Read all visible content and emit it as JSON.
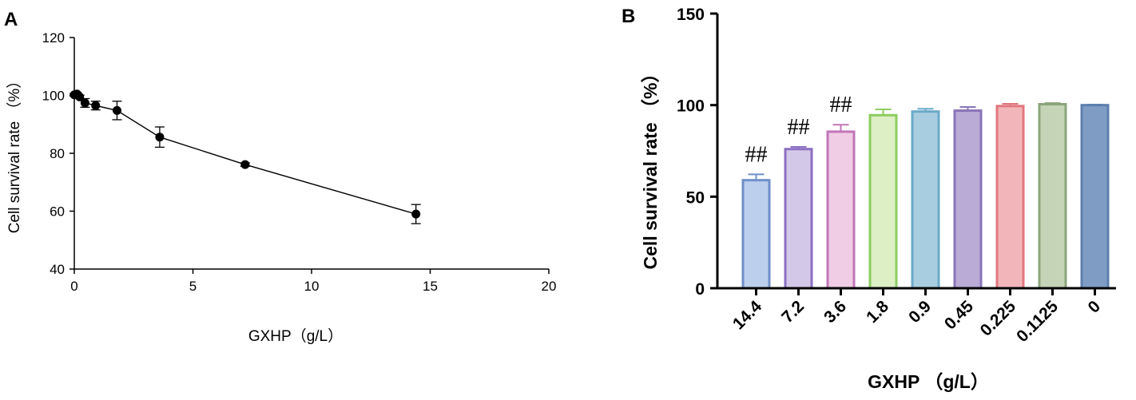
{
  "chart_data": [
    {
      "panel": "A",
      "type": "line",
      "xlabel": "GXHP（g/L）",
      "ylabel": "Cell survival rate （%）",
      "xlim": [
        0,
        20
      ],
      "ylim": [
        40,
        120
      ],
      "xticks": [
        0,
        5,
        10,
        15,
        20
      ],
      "yticks": [
        40,
        60,
        80,
        100,
        120
      ],
      "series": [
        {
          "points": [
            {
              "x": 0,
              "y": 100.2,
              "err": 0.4
            },
            {
              "x": 0.1125,
              "y": 100.5,
              "err": 0.5
            },
            {
              "x": 0.225,
              "y": 99.5,
              "err": 0.6
            },
            {
              "x": 0.45,
              "y": 97.4,
              "err": 1.5
            },
            {
              "x": 0.9,
              "y": 96.5,
              "err": 1.5
            },
            {
              "x": 1.8,
              "y": 94.8,
              "err": 3.2
            },
            {
              "x": 3.6,
              "y": 85.6,
              "err": 3.5
            },
            {
              "x": 7.2,
              "y": 76.1,
              "err": 0.6
            },
            {
              "x": 14.4,
              "y": 59.0,
              "err": 3.3
            }
          ]
        }
      ]
    },
    {
      "panel": "B",
      "type": "bar",
      "xlabel": "GXHP （g/L）",
      "ylabel": "Cell survival rate （%）",
      "ylim": [
        0,
        150
      ],
      "yticks": [
        0,
        50,
        100,
        150
      ],
      "categories": [
        "14.4",
        "7.2",
        "3.6",
        "1.8",
        "0.9",
        "0.45",
        "0.225",
        "0.1125",
        "0"
      ],
      "values": [
        59,
        76,
        85.5,
        94.5,
        96.5,
        97,
        99.5,
        100.5,
        100
      ],
      "errors": [
        3.2,
        1.2,
        3.8,
        3.2,
        1.5,
        2.0,
        1.2,
        0.6,
        0.3
      ],
      "annotations": [
        "##",
        "##",
        "##",
        "",
        "",
        "",
        "",
        "",
        ""
      ],
      "fill_colors": [
        "#bccfec",
        "#d4c8e8",
        "#f0cde4",
        "#dcefc5",
        "#a9cde0",
        "#b9aad6",
        "#f2b6ba",
        "#c5d4b7",
        "#7f9dc4"
      ],
      "edge_colors": [
        "#6f8fc8",
        "#8c6fc4",
        "#c275b8",
        "#8ccd5f",
        "#6aaac8",
        "#8a74b8",
        "#e0767e",
        "#8aa47a",
        "#5c7fae"
      ]
    }
  ],
  "panel_labels": {
    "a": "A",
    "b": "B"
  }
}
